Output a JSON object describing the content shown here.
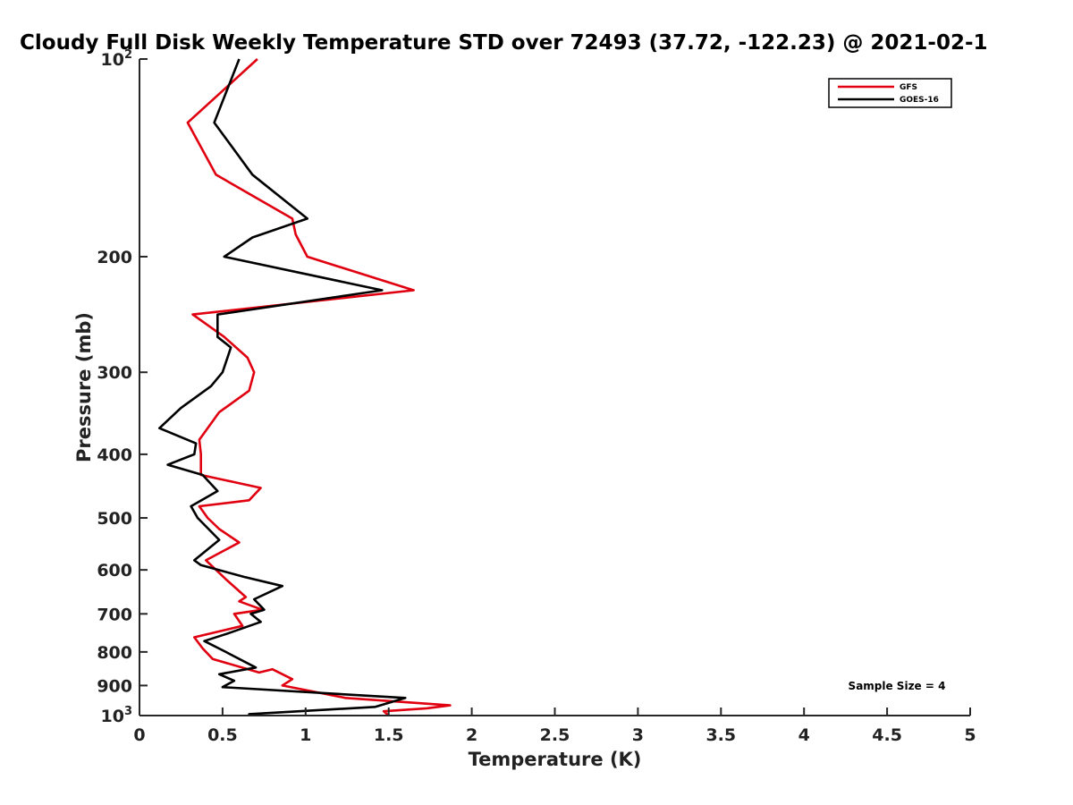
{
  "chart_data": {
    "type": "line",
    "title": "Cloudy Full Disk Weekly Temperature STD over 72493 (37.72, -122.23) @ 2021-02-1",
    "xlabel": "Temperature (K)",
    "ylabel": "Pressure (mb)",
    "xlim": [
      0,
      5
    ],
    "ylim": [
      1000,
      100
    ],
    "y_scale": "log",
    "y_reversed": true,
    "grid": false,
    "legend_position": "top-right",
    "x_ticks": [
      "0",
      "0.5",
      "1",
      "1.5",
      "2",
      "2.5",
      "3",
      "3.5",
      "4",
      "4.5",
      "5"
    ],
    "x_tick_values": [
      0,
      0.5,
      1,
      1.5,
      2,
      2.5,
      3,
      3.5,
      4,
      4.5,
      5
    ],
    "y_ticks": [
      {
        "value": 100,
        "base": "10",
        "exp": "2"
      },
      {
        "value": 200,
        "label": "200"
      },
      {
        "value": 300,
        "label": "300"
      },
      {
        "value": 400,
        "label": "400"
      },
      {
        "value": 500,
        "label": "500"
      },
      {
        "value": 600,
        "label": "600"
      },
      {
        "value": 700,
        "label": "700"
      },
      {
        "value": 800,
        "label": "800"
      },
      {
        "value": 900,
        "label": "900"
      },
      {
        "value": 1000,
        "base": "10",
        "exp": "3"
      }
    ],
    "annotation": "Sample Size = 4",
    "series": [
      {
        "name": "GFS",
        "color": "#e0000f",
        "points": [
          [
            0.71,
            100
          ],
          [
            0.29,
            125
          ],
          [
            0.46,
            150
          ],
          [
            0.92,
            175
          ],
          [
            0.94,
            185
          ],
          [
            1.01,
            200
          ],
          [
            1.65,
            225
          ],
          [
            0.32,
            245
          ],
          [
            0.51,
            265
          ],
          [
            0.65,
            285
          ],
          [
            0.69,
            300
          ],
          [
            0.66,
            320
          ],
          [
            0.48,
            345
          ],
          [
            0.36,
            380
          ],
          [
            0.37,
            400
          ],
          [
            0.37,
            430
          ],
          [
            0.73,
            450
          ],
          [
            0.66,
            470
          ],
          [
            0.36,
            480
          ],
          [
            0.41,
            500
          ],
          [
            0.48,
            520
          ],
          [
            0.6,
            545
          ],
          [
            0.4,
            580
          ],
          [
            0.52,
            620
          ],
          [
            0.64,
            660
          ],
          [
            0.6,
            670
          ],
          [
            0.74,
            690
          ],
          [
            0.57,
            700
          ],
          [
            0.62,
            730
          ],
          [
            0.33,
            760
          ],
          [
            0.38,
            790
          ],
          [
            0.44,
            820
          ],
          [
            0.72,
            860
          ],
          [
            0.8,
            850
          ],
          [
            0.92,
            880
          ],
          [
            0.86,
            900
          ],
          [
            1.24,
            940
          ],
          [
            1.87,
            965
          ],
          [
            1.73,
            975
          ],
          [
            1.47,
            985
          ],
          [
            1.5,
            1000
          ]
        ]
      },
      {
        "name": "GOES-16",
        "color": "#000000",
        "points": [
          [
            0.6,
            100
          ],
          [
            0.45,
            125
          ],
          [
            0.68,
            150
          ],
          [
            1.01,
            175
          ],
          [
            0.68,
            187
          ],
          [
            0.51,
            200
          ],
          [
            1.46,
            225
          ],
          [
            0.47,
            245
          ],
          [
            0.47,
            265
          ],
          [
            0.55,
            275
          ],
          [
            0.5,
            300
          ],
          [
            0.43,
            315
          ],
          [
            0.25,
            340
          ],
          [
            0.12,
            365
          ],
          [
            0.34,
            385
          ],
          [
            0.33,
            400
          ],
          [
            0.17,
            415
          ],
          [
            0.38,
            430
          ],
          [
            0.47,
            455
          ],
          [
            0.31,
            480
          ],
          [
            0.35,
            500
          ],
          [
            0.48,
            540
          ],
          [
            0.33,
            580
          ],
          [
            0.37,
            590
          ],
          [
            0.63,
            615
          ],
          [
            0.86,
            635
          ],
          [
            0.69,
            665
          ],
          [
            0.75,
            690
          ],
          [
            0.67,
            700
          ],
          [
            0.73,
            720
          ],
          [
            0.53,
            750
          ],
          [
            0.39,
            770
          ],
          [
            0.52,
            800
          ],
          [
            0.54,
            805
          ],
          [
            0.7,
            845
          ],
          [
            0.48,
            865
          ],
          [
            0.57,
            885
          ],
          [
            0.5,
            905
          ],
          [
            1.6,
            940
          ],
          [
            1.42,
            970
          ],
          [
            0.66,
            995
          ],
          [
            0.67,
            1000
          ]
        ]
      }
    ]
  }
}
